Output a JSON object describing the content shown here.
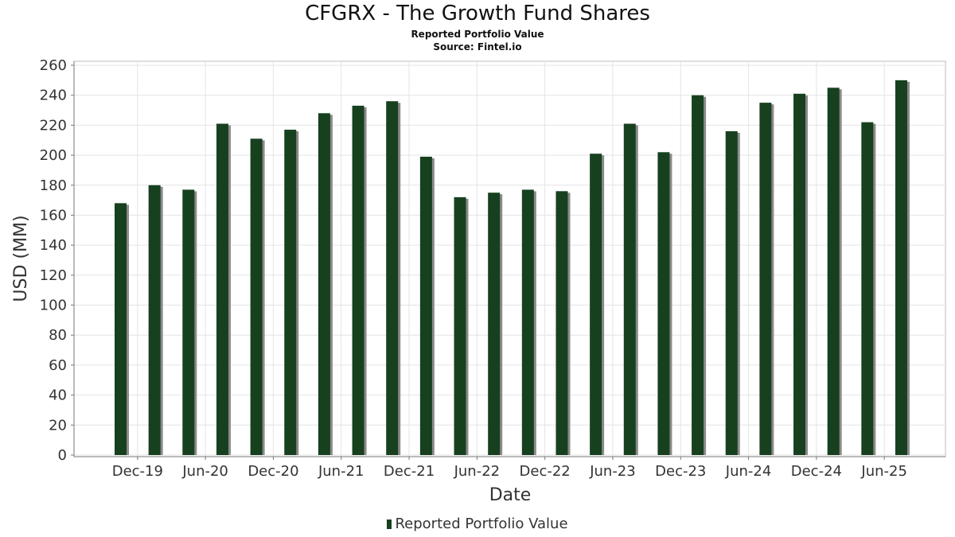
{
  "chart_data": {
    "type": "bar",
    "title": "CFGRX - The Growth Fund Shares",
    "subtitle": "Reported Portfolio Value",
    "source": "Source: Fintel.io",
    "xlabel": "Date",
    "ylabel": "USD (MM)",
    "ylim": [
      0,
      260
    ],
    "yticks": [
      0,
      20,
      40,
      60,
      80,
      100,
      120,
      140,
      160,
      180,
      200,
      220,
      240,
      260
    ],
    "xtick_labels": [
      "Dec-19",
      "Jun-20",
      "Dec-20",
      "Jun-21",
      "Dec-21",
      "Jun-22",
      "Dec-22",
      "Jun-23",
      "Dec-23",
      "Jun-24",
      "Dec-24",
      "Jun-25"
    ],
    "grid": true,
    "legend_position": "bottom-center",
    "bar_color": "#17401f",
    "series": [
      {
        "name": "Reported Portfolio Value",
        "values": [
          168,
          180,
          177,
          221,
          211,
          217,
          228,
          233,
          236,
          199,
          172,
          175,
          177,
          176,
          201,
          221,
          202,
          240,
          216,
          235,
          241,
          245,
          222,
          250
        ]
      }
    ]
  }
}
